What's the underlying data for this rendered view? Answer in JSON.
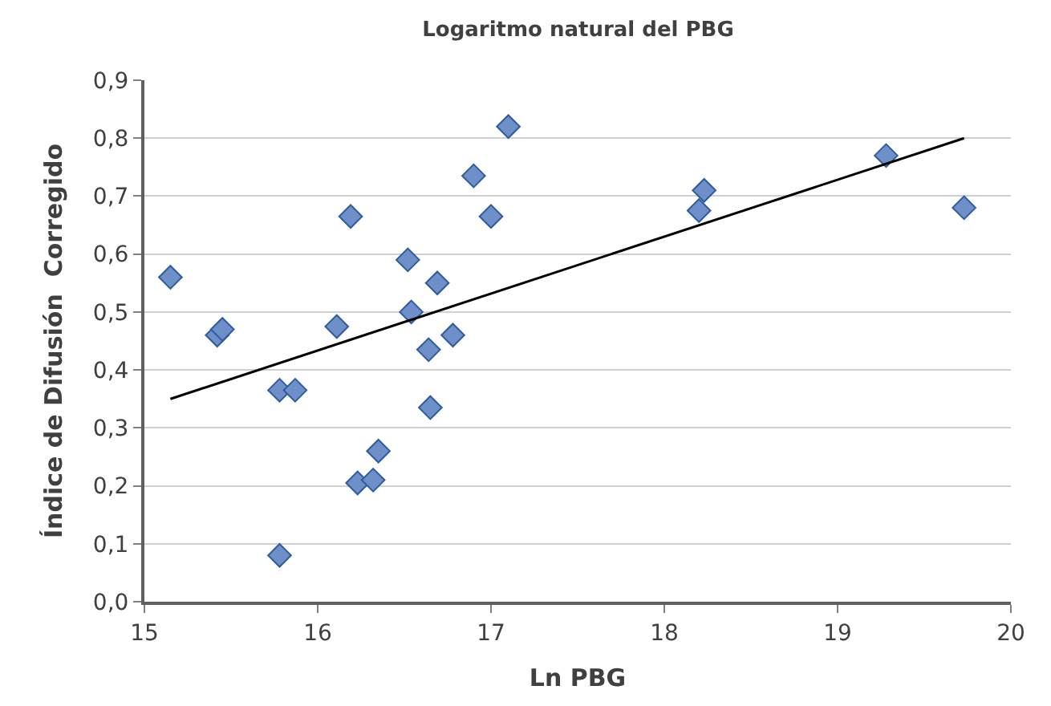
{
  "chart_data": {
    "type": "scatter",
    "title": "Logaritmo natural del PBG",
    "xlabel": "Ln PBG",
    "ylabel": "Índice de Difusión  Corregido",
    "xlim": [
      15,
      20
    ],
    "xticks": [
      15,
      16,
      17,
      18,
      19,
      20
    ],
    "ylim": [
      0,
      0.9
    ],
    "yticks": [
      {
        "value": 0,
        "label": "0,0"
      },
      {
        "value": 0.1,
        "label": "0,1"
      },
      {
        "value": 0.2,
        "label": "0,2"
      },
      {
        "value": 0.3,
        "label": "0,3"
      },
      {
        "value": 0.4,
        "label": "0,4"
      },
      {
        "value": 0.5,
        "label": "0,5"
      },
      {
        "value": 0.6,
        "label": "0,6"
      },
      {
        "value": 0.7,
        "label": "0,7"
      },
      {
        "value": 0.8,
        "label": "0,8"
      },
      {
        "value": 0.9,
        "label": "0,9"
      }
    ],
    "grid": "y",
    "legend": false,
    "marker": "diamond",
    "series": [
      {
        "color": "#6f8fc9",
        "x": [
          15.15,
          15.42,
          15.45,
          15.78,
          15.87,
          15.78,
          16.11,
          16.19,
          16.23,
          16.32,
          16.35,
          16.52,
          16.54,
          16.64,
          16.65,
          16.69,
          16.78,
          16.9,
          17.0,
          17.1,
          18.2,
          18.23,
          19.28,
          19.73
        ],
        "values": [
          0.56,
          0.46,
          0.47,
          0.365,
          0.365,
          0.08,
          0.475,
          0.665,
          0.205,
          0.21,
          0.26,
          0.59,
          0.5,
          0.435,
          0.335,
          0.55,
          0.46,
          0.735,
          0.665,
          0.82,
          0.675,
          0.71,
          0.77,
          0.68
        ]
      },
      {
        "type": "line",
        "color": "#000000",
        "marker": "none",
        "line_style": "solid",
        "x": [
          15.15,
          19.73
        ],
        "values": [
          0.35,
          0.8
        ]
      }
    ]
  }
}
